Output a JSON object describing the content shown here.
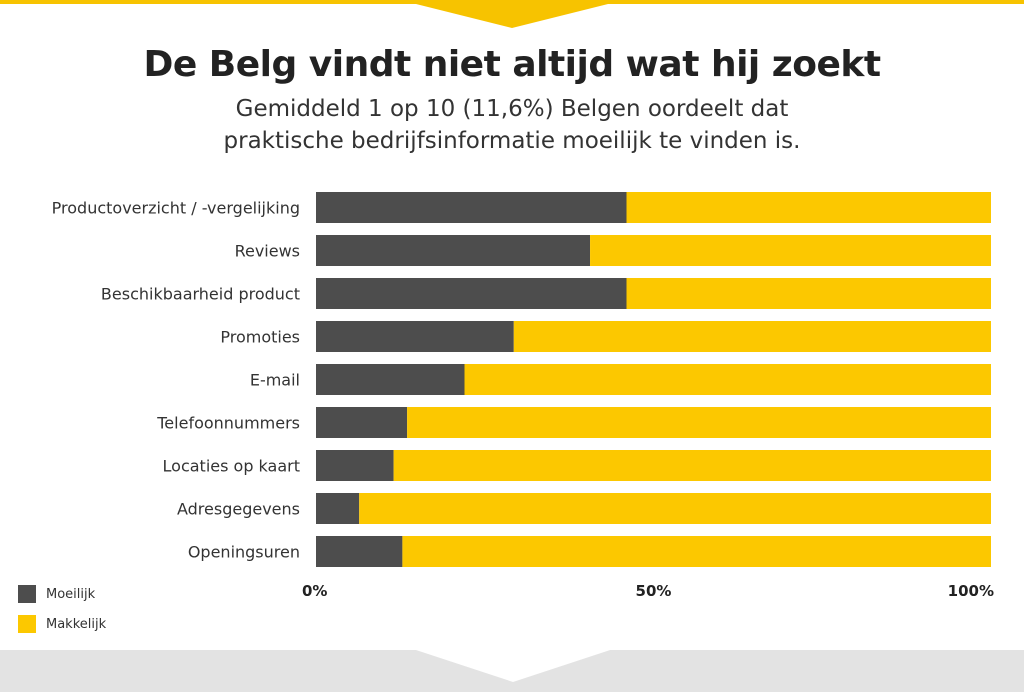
{
  "header": {
    "title": "De Belg vindt niet altijd wat hij zoekt",
    "subtitle": "Gemiddeld 1 op 10 (11,6%) Belgen oordeelt dat praktische bedrijfsinformatie moeilijk te vinden is."
  },
  "colors": {
    "moeilijk": "#4d4d4d",
    "makkelijk": "#fcc800",
    "accent": "#f7c300"
  },
  "chart_data": {
    "type": "bar",
    "orientation": "horizontal",
    "stacked": true,
    "categories": [
      "Productoverzicht / -vergelijking",
      "Reviews",
      "Beschikbaarheid product",
      "Promoties",
      "E-mail",
      "Telefoonnummers",
      "Locaties op kaart",
      "Adresgegevens",
      "Openingsuren"
    ],
    "series": [
      {
        "name": "Moeilijk",
        "values": [
          46,
          40.6,
          46,
          29.3,
          22,
          13.5,
          11.5,
          6.4,
          12.8
        ]
      },
      {
        "name": "Makkelijk",
        "values": [
          54,
          59.4,
          54,
          70.7,
          78,
          86.5,
          88.5,
          93.6,
          87.2
        ]
      }
    ],
    "xlim": [
      0,
      100
    ],
    "ticks": [
      "0%",
      "50%",
      "100%"
    ],
    "legend_position": "bottom-left",
    "grid": false
  }
}
